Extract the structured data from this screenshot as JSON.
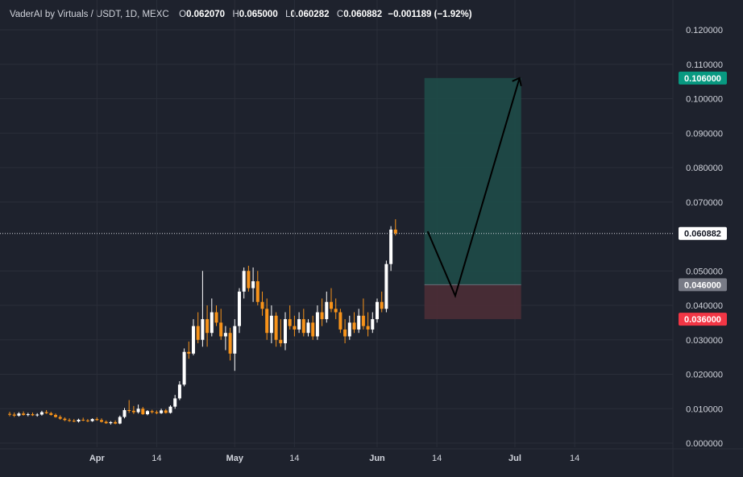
{
  "header": {
    "symbol": "VaderAI by Virtuals / USDT, 1D, MEXC",
    "open_label": "O",
    "open": "0.062070",
    "high_label": "H",
    "high": "0.065000",
    "low_label": "L",
    "low": "0.060282",
    "close_label": "C",
    "close": "0.060882",
    "change": "−0.001189 (−1.92%)"
  },
  "colors": {
    "background": "#1e222d",
    "grid": "#2a2e39",
    "up": "#ffffff",
    "down": "#f7931a",
    "axis_text": "#d1d4dc",
    "profit_zone": "#1f4a47",
    "loss_zone": "#4a2d36",
    "target_label": "#089981",
    "entry_label": "#787b86",
    "stop_label": "#f23645",
    "last_price_label": "#ffffff"
  },
  "chart_data": {
    "type": "candlestick",
    "ylim": [
      0,
      0.12
    ],
    "y_ticks": [
      "0.120000",
      "0.110000",
      "0.100000",
      "0.090000",
      "0.080000",
      "0.070000",
      "0.050000",
      "0.040000",
      "0.030000",
      "0.020000",
      "0.010000",
      "0.000000"
    ],
    "y_tick_values": [
      0.12,
      0.11,
      0.1,
      0.09,
      0.08,
      0.07,
      0.05,
      0.04,
      0.03,
      0.02,
      0.01,
      0.0
    ],
    "x_ticks": [
      {
        "label": "Apr",
        "day": 19
      },
      {
        "label": "14",
        "day": 32
      },
      {
        "label": "May",
        "day": 49
      },
      {
        "label": "14",
        "day": 62
      },
      {
        "label": "Jun",
        "day": 80
      },
      {
        "label": "14",
        "day": 93
      },
      {
        "label": "Jul",
        "day": 110
      },
      {
        "label": "14",
        "day": 123
      }
    ],
    "last_price": {
      "value": 0.060882,
      "label": "0.060882"
    },
    "position": {
      "target": {
        "value": 0.106,
        "label": "0.106000"
      },
      "entry": {
        "value": 0.046,
        "label": "0.046000"
      },
      "stop": {
        "value": 0.036,
        "label": "0.036000"
      },
      "start_day": 91,
      "end_day": 111
    },
    "projection_path": [
      {
        "day": 91,
        "value": 0.0615
      },
      {
        "day": 97,
        "value": 0.0428
      },
      {
        "day": 111,
        "value": 0.106
      }
    ],
    "candles": [
      [
        0.0085,
        0.0091,
        0.0078,
        0.0083
      ],
      [
        0.0083,
        0.0089,
        0.0076,
        0.008
      ],
      [
        0.008,
        0.009,
        0.0077,
        0.0086
      ],
      [
        0.0086,
        0.0092,
        0.008,
        0.0082
      ],
      [
        0.0082,
        0.0088,
        0.0078,
        0.0084
      ],
      [
        0.0084,
        0.0089,
        0.0079,
        0.0081
      ],
      [
        0.0081,
        0.0087,
        0.0077,
        0.0083
      ],
      [
        0.0083,
        0.0094,
        0.008,
        0.009
      ],
      [
        0.009,
        0.0096,
        0.0085,
        0.0087
      ],
      [
        0.0087,
        0.0091,
        0.008,
        0.0082
      ],
      [
        0.0082,
        0.0086,
        0.0074,
        0.0076
      ],
      [
        0.0076,
        0.0081,
        0.0068,
        0.0071
      ],
      [
        0.0071,
        0.0075,
        0.0064,
        0.0067
      ],
      [
        0.0067,
        0.0072,
        0.0062,
        0.0065
      ],
      [
        0.0065,
        0.007,
        0.0061,
        0.0063
      ],
      [
        0.0063,
        0.0071,
        0.006,
        0.0068
      ],
      [
        0.0068,
        0.0074,
        0.0064,
        0.0066
      ],
      [
        0.0066,
        0.007,
        0.0061,
        0.0064
      ],
      [
        0.0064,
        0.0072,
        0.0062,
        0.007
      ],
      [
        0.007,
        0.0075,
        0.0065,
        0.0067
      ],
      [
        0.0067,
        0.0072,
        0.006,
        0.0062
      ],
      [
        0.0062,
        0.0066,
        0.0056,
        0.0058
      ],
      [
        0.0058,
        0.0064,
        0.0054,
        0.0061
      ],
      [
        0.0061,
        0.0066,
        0.0055,
        0.0057
      ],
      [
        0.0057,
        0.008,
        0.0055,
        0.0076
      ],
      [
        0.0076,
        0.0102,
        0.0072,
        0.0096
      ],
      [
        0.0096,
        0.0125,
        0.0088,
        0.0094
      ],
      [
        0.0094,
        0.0108,
        0.0085,
        0.009
      ],
      [
        0.009,
        0.0112,
        0.0086,
        0.01
      ],
      [
        0.01,
        0.0105,
        0.0082,
        0.0084
      ],
      [
        0.0084,
        0.0096,
        0.0081,
        0.0093
      ],
      [
        0.0093,
        0.0097,
        0.0086,
        0.009
      ],
      [
        0.009,
        0.0095,
        0.0084,
        0.0087
      ],
      [
        0.0087,
        0.01,
        0.0085,
        0.0095
      ],
      [
        0.0095,
        0.0099,
        0.0086,
        0.0088
      ],
      [
        0.0088,
        0.011,
        0.0086,
        0.0106
      ],
      [
        0.0106,
        0.014,
        0.01,
        0.013
      ],
      [
        0.013,
        0.018,
        0.0125,
        0.017
      ],
      [
        0.017,
        0.0275,
        0.0165,
        0.0265
      ],
      [
        0.0265,
        0.0295,
        0.0245,
        0.026
      ],
      [
        0.026,
        0.036,
        0.0255,
        0.034
      ],
      [
        0.034,
        0.038,
        0.029,
        0.03
      ],
      [
        0.03,
        0.05,
        0.028,
        0.036
      ],
      [
        0.036,
        0.04,
        0.028,
        0.032
      ],
      [
        0.032,
        0.042,
        0.031,
        0.038
      ],
      [
        0.038,
        0.04,
        0.034,
        0.035
      ],
      [
        0.035,
        0.039,
        0.03,
        0.031
      ],
      [
        0.031,
        0.034,
        0.027,
        0.032
      ],
      [
        0.032,
        0.0335,
        0.024,
        0.026
      ],
      [
        0.026,
        0.036,
        0.021,
        0.034
      ],
      [
        0.034,
        0.045,
        0.032,
        0.044
      ],
      [
        0.044,
        0.051,
        0.042,
        0.05
      ],
      [
        0.05,
        0.0515,
        0.044,
        0.045
      ],
      [
        0.045,
        0.051,
        0.041,
        0.047
      ],
      [
        0.047,
        0.05,
        0.04,
        0.041
      ],
      [
        0.041,
        0.044,
        0.037,
        0.039
      ],
      [
        0.039,
        0.042,
        0.03,
        0.032
      ],
      [
        0.032,
        0.04,
        0.029,
        0.037
      ],
      [
        0.037,
        0.038,
        0.028,
        0.03
      ],
      [
        0.03,
        0.036,
        0.028,
        0.029
      ],
      [
        0.029,
        0.038,
        0.027,
        0.036
      ],
      [
        0.036,
        0.04,
        0.033,
        0.034
      ],
      [
        0.034,
        0.037,
        0.031,
        0.033
      ],
      [
        0.033,
        0.038,
        0.032,
        0.036
      ],
      [
        0.036,
        0.039,
        0.031,
        0.032
      ],
      [
        0.032,
        0.036,
        0.031,
        0.035
      ],
      [
        0.035,
        0.037,
        0.03,
        0.031
      ],
      [
        0.031,
        0.04,
        0.03,
        0.038
      ],
      [
        0.038,
        0.042,
        0.034,
        0.036
      ],
      [
        0.036,
        0.044,
        0.035,
        0.041
      ],
      [
        0.041,
        0.045,
        0.038,
        0.039
      ],
      [
        0.039,
        0.042,
        0.036,
        0.038
      ],
      [
        0.038,
        0.039,
        0.032,
        0.033
      ],
      [
        0.033,
        0.036,
        0.029,
        0.031
      ],
      [
        0.031,
        0.037,
        0.03,
        0.035
      ],
      [
        0.035,
        0.038,
        0.032,
        0.033
      ],
      [
        0.033,
        0.039,
        0.032,
        0.037
      ],
      [
        0.037,
        0.042,
        0.033,
        0.034
      ],
      [
        0.034,
        0.038,
        0.031,
        0.033
      ],
      [
        0.033,
        0.038,
        0.032,
        0.036
      ],
      [
        0.036,
        0.042,
        0.035,
        0.041
      ],
      [
        0.041,
        0.044,
        0.038,
        0.039
      ],
      [
        0.039,
        0.053,
        0.038,
        0.052
      ],
      [
        0.052,
        0.063,
        0.05,
        0.062
      ],
      [
        0.062,
        0.065,
        0.0603,
        0.0609
      ]
    ]
  }
}
